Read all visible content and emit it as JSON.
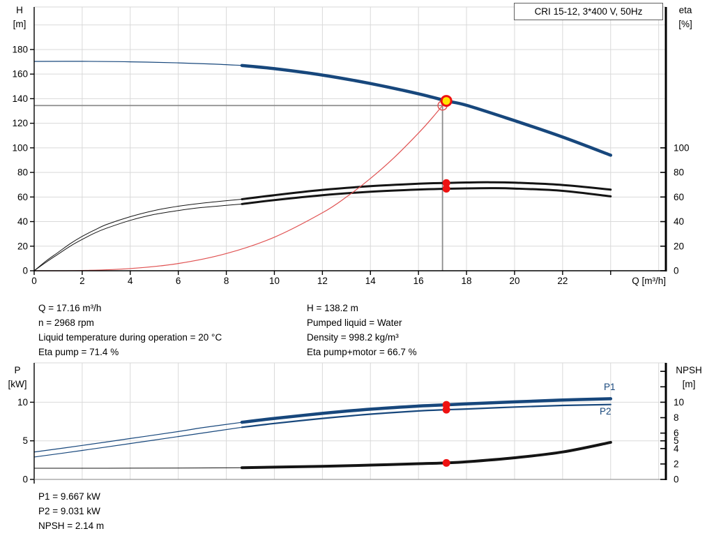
{
  "title_box": "CRI 15-12, 3*400 V, 50Hz",
  "colors": {
    "blue": "#17477c",
    "black": "#141414",
    "red": "#e05252",
    "dot_red": "#ee1111",
    "dot_yellow": "#ffe400",
    "grid": "#d9d9d9",
    "border_soft": "#9a9a9a",
    "crosshair": "#8c8c8c",
    "axis": "#000000"
  },
  "info_left": [
    "Q = 17.16 m³/h",
    "n = 2968 rpm",
    "Liquid temperature during operation = 20 °C",
    "Eta pump = 71.4 %"
  ],
  "info_right": [
    "H = 138.2 m",
    "Pumped liquid = Water",
    "Density = 998.2 kg/m³",
    "Eta pump+motor = 66.7 %"
  ],
  "info_bottom": [
    "P1 = 9.667 kW",
    "P2 = 9.031 kW",
    "NPSH = 2.14 m"
  ],
  "chart_data": [
    {
      "type": "line",
      "title": "CRI 15-12, 3*400 V, 50Hz",
      "xlabel": "Q [m³/h]",
      "ylabel_left": [
        "H",
        "[m]"
      ],
      "ylabel_right": [
        "eta",
        "[%]"
      ],
      "xlim": [
        0,
        26.3
      ],
      "ylim_left": [
        0,
        214.6
      ],
      "ylim_right": [
        0,
        214.6
      ],
      "grid": true,
      "x_tick_labels": [
        0,
        2,
        4,
        6,
        8,
        10,
        12,
        14,
        16,
        18,
        20,
        22
      ],
      "x_ticks_unlabeled": [
        24
      ],
      "y_ticks_left": [
        0,
        20,
        40,
        60,
        80,
        100,
        120,
        140,
        160,
        180
      ],
      "y_ticks_right": [
        0,
        20,
        40,
        60,
        80,
        100
      ],
      "operating_point": {
        "Q_m3h": 17.16,
        "H_m": 138.2,
        "eta_pump_pct": 71.4,
        "eta_pump_motor_pct": 66.7
      },
      "crosshair": {
        "Q": 17.0,
        "value": 134.4
      },
      "series": [
        {
          "key": "head",
          "label": "Head H(Q)",
          "color": "blue",
          "w_thin": 1.2,
          "w_thick": 4.5,
          "thin": [
            [
              0,
              170.3
            ],
            [
              2,
              170.4
            ],
            [
              4,
              170.0
            ],
            [
              6,
              169.1
            ],
            [
              7.5,
              168.1
            ],
            [
              8.65,
              167.0
            ]
          ],
          "thick": [
            [
              8.65,
              167.0
            ],
            [
              10,
              164.4
            ],
            [
              12,
              159.2
            ],
            [
              14,
              152.3
            ],
            [
              16,
              144.0
            ],
            [
              17.16,
              138.2
            ],
            [
              18,
              134.6
            ],
            [
              20,
              122.1
            ],
            [
              22,
              108.8
            ],
            [
              24,
              94.0
            ]
          ]
        },
        {
          "key": "eta-pump",
          "label": "Eta pump",
          "color": "black",
          "w_thin": 1,
          "w_thick": 3,
          "thin": [
            [
              0,
              0
            ],
            [
              0.5,
              8
            ],
            [
              1,
              15
            ],
            [
              1.5,
              22
            ],
            [
              2,
              28
            ],
            [
              2.5,
              33
            ],
            [
              3,
              37.5
            ],
            [
              4,
              44
            ],
            [
              5,
              49
            ],
            [
              6,
              52.5
            ],
            [
              7,
              55
            ],
            [
              8,
              57
            ],
            [
              8.65,
              58.2
            ]
          ],
          "thick": [
            [
              8.65,
              58.2
            ],
            [
              10,
              61.5
            ],
            [
              12,
              65.8
            ],
            [
              14,
              68.8
            ],
            [
              16,
              70.8
            ],
            [
              17.16,
              71.4
            ],
            [
              18,
              71.8
            ],
            [
              19,
              72.0
            ],
            [
              20,
              71.7
            ],
            [
              22,
              69.8
            ],
            [
              24,
              66.0
            ]
          ]
        },
        {
          "key": "eta-pump-motor",
          "label": "Eta pump+motor",
          "color": "black",
          "w_thin": 1,
          "w_thick": 3,
          "thin": [
            [
              0,
              0
            ],
            [
              0.5,
              7
            ],
            [
              1,
              13.5
            ],
            [
              1.5,
              20
            ],
            [
              2,
              25.5
            ],
            [
              2.5,
              30.5
            ],
            [
              3,
              34.5
            ],
            [
              4,
              41
            ],
            [
              5,
              45.8
            ],
            [
              6,
              49
            ],
            [
              7,
              51.5
            ],
            [
              8,
              53.2
            ],
            [
              8.65,
              54.3
            ]
          ],
          "thick": [
            [
              8.65,
              54.3
            ],
            [
              10,
              57.5
            ],
            [
              12,
              61.5
            ],
            [
              14,
              64.3
            ],
            [
              16,
              66.1
            ],
            [
              17.16,
              66.7
            ],
            [
              18,
              67.0
            ],
            [
              19,
              67.2
            ],
            [
              20,
              66.9
            ],
            [
              22,
              65.0
            ],
            [
              24,
              60.5
            ]
          ]
        },
        {
          "key": "system",
          "label": "System curve",
          "color": "red",
          "w_thin": 1.2,
          "w_thick": 1.2,
          "thin": [
            [
              0,
              0
            ],
            [
              2,
              0.2
            ],
            [
              4,
              1.8
            ],
            [
              6,
              5.9
            ],
            [
              8,
              14.0
            ],
            [
              10,
              27.3
            ],
            [
              12,
              47.2
            ],
            [
              13,
              60.0
            ],
            [
              14,
              75.1
            ],
            [
              15,
              92.3
            ],
            [
              16,
              112.0
            ],
            [
              16.6,
              125.0
            ],
            [
              17.16,
              138.2
            ]
          ],
          "thick": []
        }
      ],
      "markers": [
        {
          "Q": 17.0,
          "value": 134.4,
          "style": "open-ring-red"
        },
        {
          "Q": 17.16,
          "value": 138.2,
          "style": "duty-point-yellow"
        },
        {
          "Q": 17.16,
          "value": 71.4,
          "style": "dot-red"
        },
        {
          "Q": 17.16,
          "value": 66.7,
          "style": "dot-red"
        }
      ]
    },
    {
      "type": "line",
      "title": "",
      "xlabel": "",
      "ylabel_left": [
        "P",
        "[kW]"
      ],
      "ylabel_right": [
        "NPSH",
        "[m]"
      ],
      "xlim": [
        0,
        26.3
      ],
      "ylim_left": [
        0,
        15.1
      ],
      "ylim_right": [
        0,
        15.1
      ],
      "grid": true,
      "x_tick_labels": [],
      "x_ticks_unlabeled": [
        0
      ],
      "y_ticks_left": [
        0,
        5,
        10
      ],
      "y_ticks_right": [
        0,
        2,
        4,
        5,
        6,
        8,
        10
      ],
      "y_ticks_right_unlabeled": [
        12,
        14
      ],
      "operating_point": {
        "P1_kW": 9.667,
        "P2_kW": 9.031,
        "NPSH_m": 2.14
      },
      "curve_labels": [
        {
          "text": "P1",
          "x": 866,
          "y": 547
        },
        {
          "text": "P2",
          "x": 860,
          "y": 582
        }
      ],
      "series": [
        {
          "key": "p1",
          "label": "P1",
          "color": "blue",
          "w_thin": 1.2,
          "w_thick": 4.5,
          "thin": [
            [
              0,
              3.55
            ],
            [
              2,
              4.4
            ],
            [
              4,
              5.3
            ],
            [
              6,
              6.2
            ],
            [
              7,
              6.7
            ],
            [
              8.65,
              7.4
            ]
          ],
          "thick": [
            [
              8.65,
              7.4
            ],
            [
              10,
              7.9
            ],
            [
              12,
              8.55
            ],
            [
              14,
              9.1
            ],
            [
              16,
              9.5
            ],
            [
              17.16,
              9.667
            ],
            [
              18,
              9.78
            ],
            [
              20,
              10.05
            ],
            [
              22,
              10.28
            ],
            [
              24,
              10.45
            ]
          ]
        },
        {
          "key": "p2",
          "label": "P2",
          "color": "blue",
          "w_thin": 1.2,
          "w_thick": 2.2,
          "thin": [
            [
              0,
              2.9
            ],
            [
              2,
              3.75
            ],
            [
              4,
              4.65
            ],
            [
              6,
              5.55
            ],
            [
              7,
              6.0
            ],
            [
              8.65,
              6.75
            ]
          ],
          "thick": [
            [
              8.65,
              6.75
            ],
            [
              10,
              7.25
            ],
            [
              12,
              7.9
            ],
            [
              14,
              8.45
            ],
            [
              16,
              8.87
            ],
            [
              17.16,
              9.031
            ],
            [
              18,
              9.12
            ],
            [
              20,
              9.38
            ],
            [
              22,
              9.58
            ],
            [
              24,
              9.7
            ]
          ]
        },
        {
          "key": "npsh",
          "label": "NPSH",
          "color": "black",
          "w_thin": 1,
          "w_thick": 4,
          "thin": [
            [
              0,
              1.45
            ],
            [
              3,
              1.45
            ],
            [
              6,
              1.47
            ],
            [
              8.65,
              1.52
            ]
          ],
          "thick": [
            [
              8.65,
              1.52
            ],
            [
              12,
              1.7
            ],
            [
              14,
              1.85
            ],
            [
              16,
              2.03
            ],
            [
              17.16,
              2.14
            ],
            [
              18,
              2.28
            ],
            [
              20,
              2.8
            ],
            [
              22,
              3.55
            ],
            [
              24,
              4.8
            ]
          ]
        }
      ],
      "markers": [
        {
          "Q": 17.16,
          "value": 9.667,
          "style": "dot-red"
        },
        {
          "Q": 17.16,
          "value": 9.031,
          "style": "dot-red"
        },
        {
          "Q": 17.16,
          "value": 2.14,
          "style": "dot-red"
        }
      ]
    }
  ]
}
